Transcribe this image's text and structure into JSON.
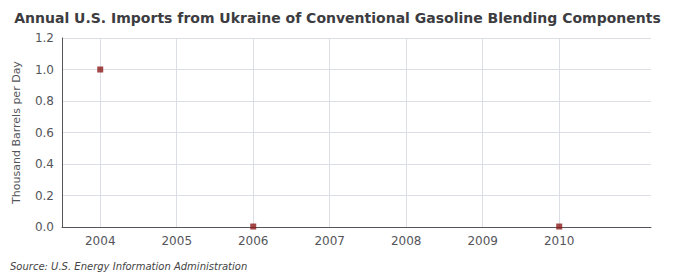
{
  "chart_data": {
    "type": "scatter",
    "title": "Annual U.S. Imports from Ukraine of Conventional Gasoline Blending Components",
    "ylabel": "Thousand Barrels per Day",
    "annotations": [
      "Source: U.S. Energy Information Administration"
    ],
    "x": [
      2004,
      2006,
      2010
    ],
    "values": [
      1.0,
      0.003,
      0.003
    ],
    "color": "#8B1A1A",
    "marker": "square",
    "xlim": [
      2003.5,
      2011.2
    ],
    "xticks": [
      2004,
      2005,
      2006,
      2007,
      2008,
      2009,
      2010
    ],
    "ylim": [
      0,
      1.2
    ],
    "yticks": [
      {
        "value": 0,
        "label": "0.0"
      },
      0.2,
      0.4,
      0.6,
      0.8,
      {
        "value": 1,
        "label": "1.0"
      },
      1.2
    ],
    "grid": true
  }
}
